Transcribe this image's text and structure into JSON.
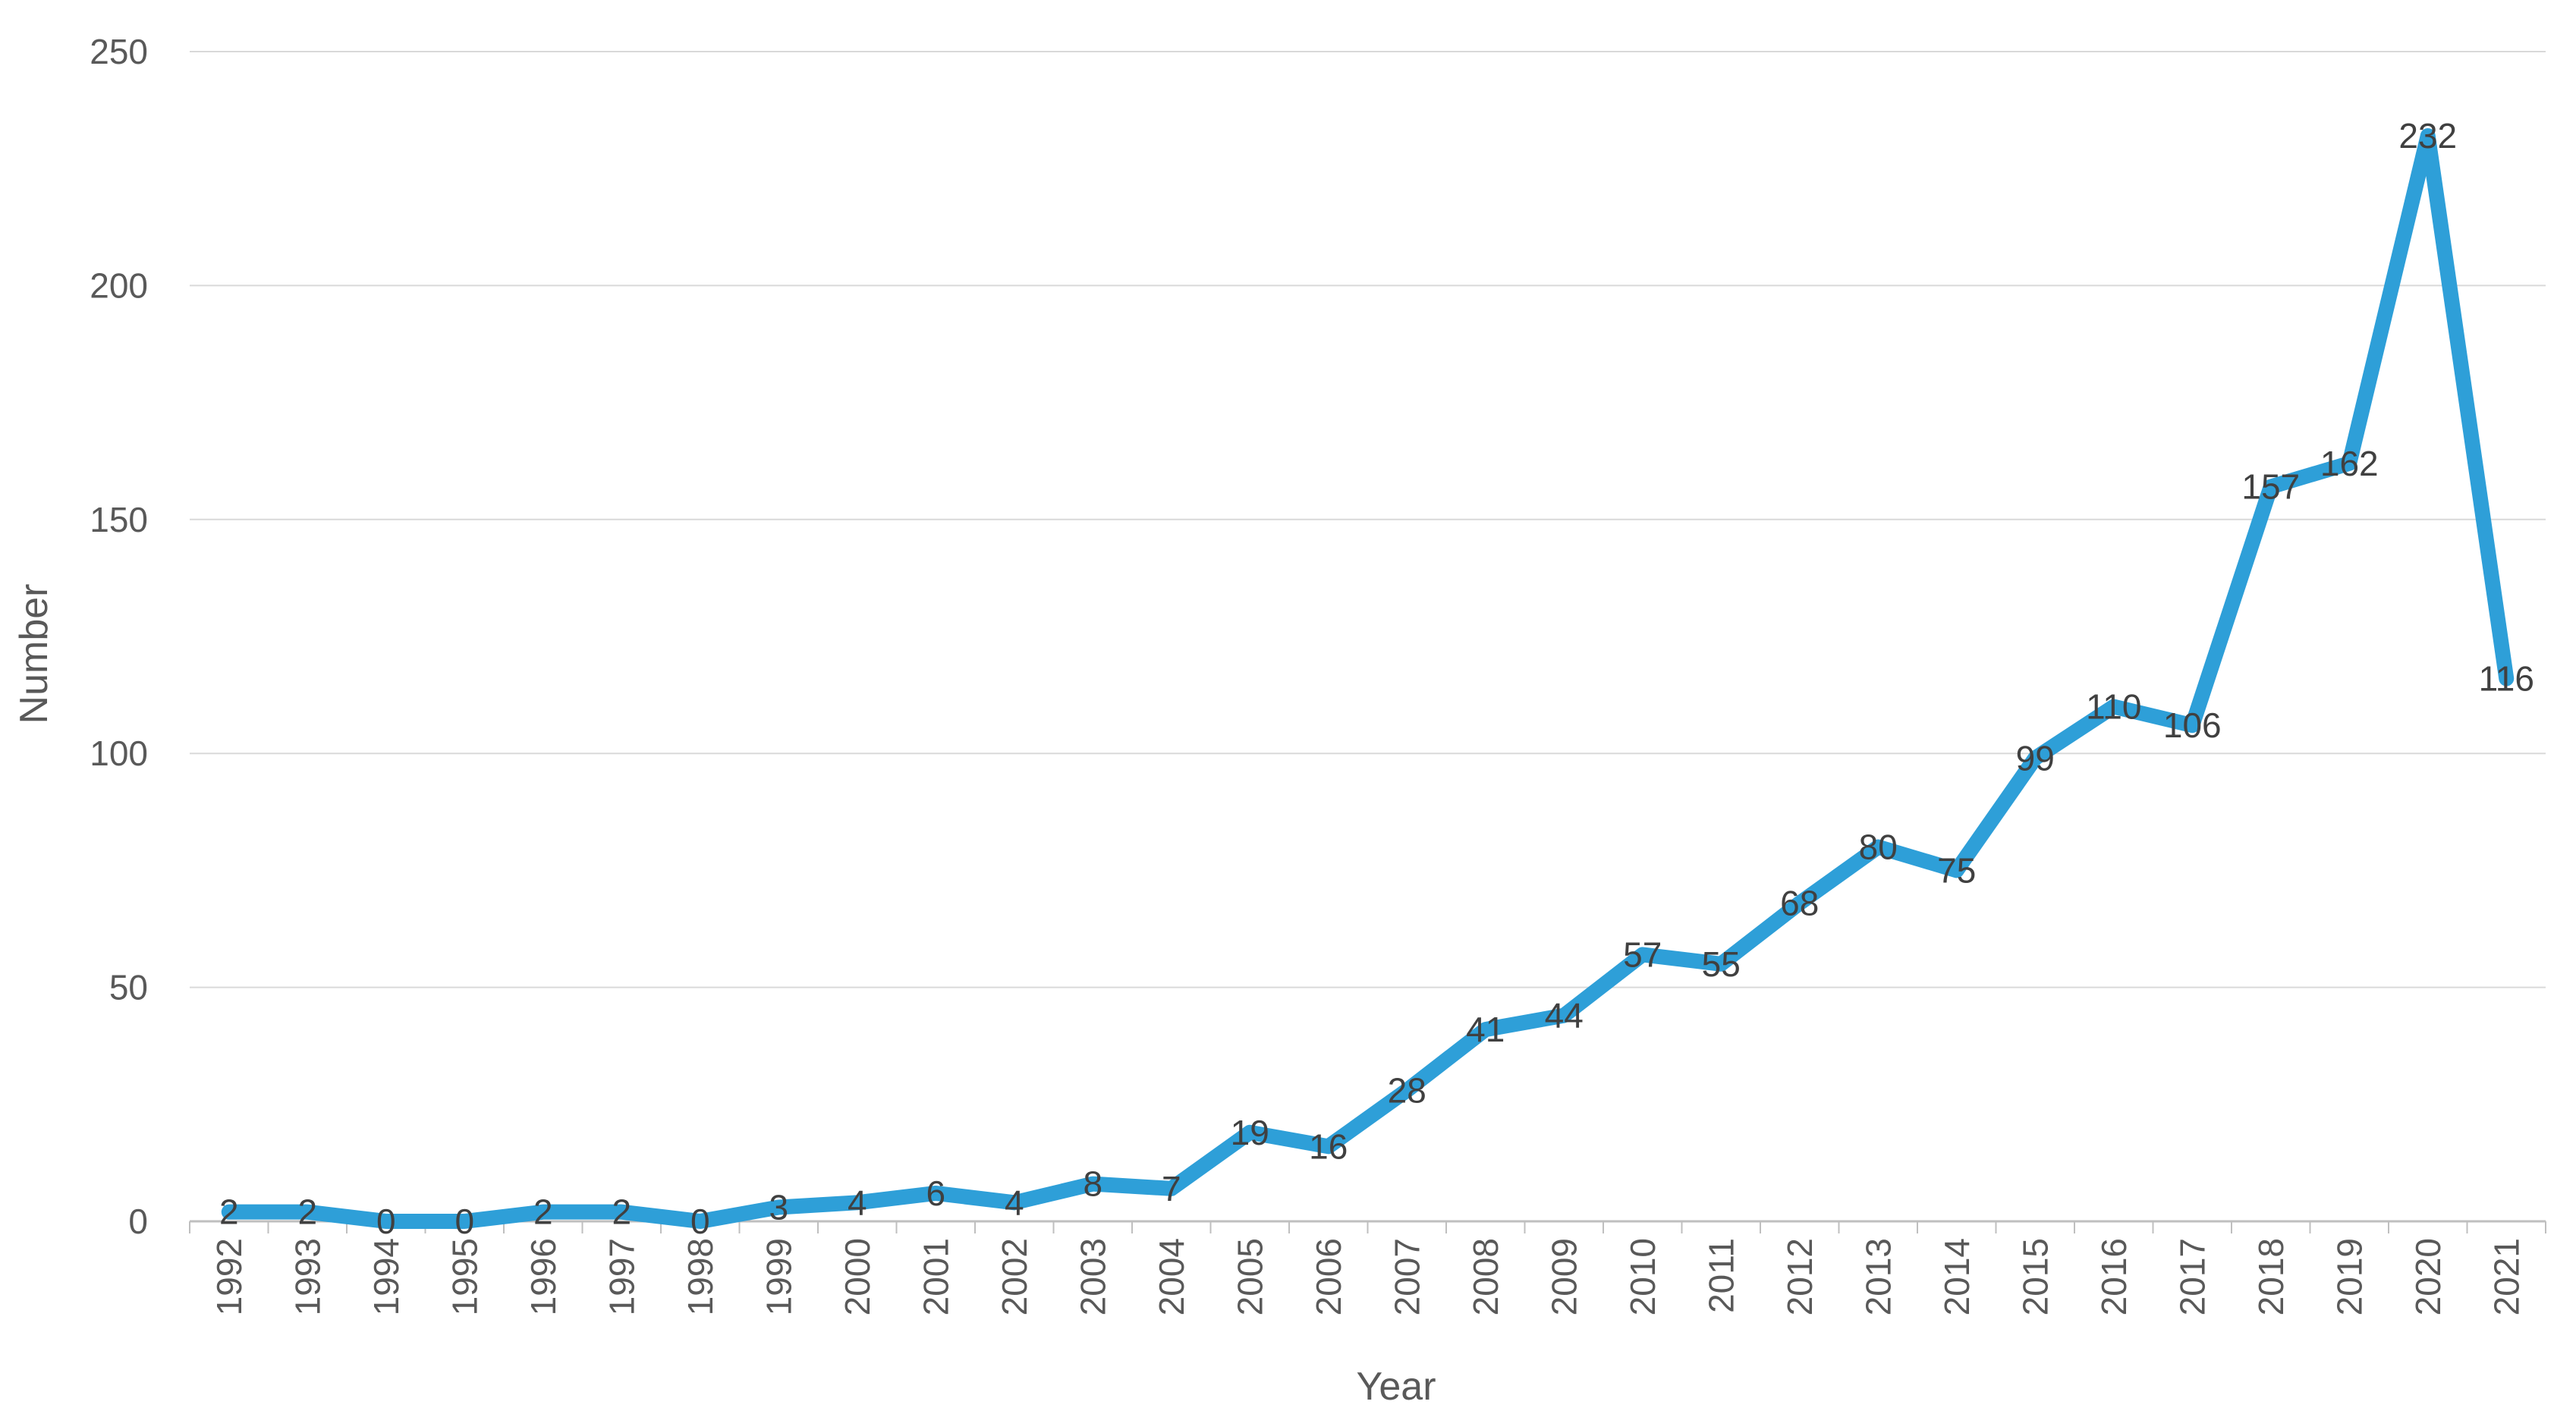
{
  "chart_data": {
    "type": "line",
    "title": "",
    "xlabel": "Year",
    "ylabel": "Number",
    "ylim": [
      0,
      250
    ],
    "yticks": [
      0,
      50,
      100,
      150,
      200,
      250
    ],
    "grid": "horizontal",
    "legend": "none",
    "line_color": "#2E9FD8",
    "categories": [
      "1992",
      "1993",
      "1994",
      "1995",
      "1996",
      "1997",
      "1998",
      "1999",
      "2000",
      "2001",
      "2002",
      "2003",
      "2004",
      "2005",
      "2006",
      "2007",
      "2008",
      "2009",
      "2010",
      "2011",
      "2012",
      "2013",
      "2014",
      "2015",
      "2016",
      "2017",
      "2018",
      "2019",
      "2020",
      "2021"
    ],
    "values": [
      2,
      2,
      0,
      0,
      2,
      2,
      0,
      3,
      4,
      6,
      4,
      8,
      7,
      19,
      16,
      28,
      41,
      44,
      57,
      55,
      68,
      80,
      75,
      99,
      110,
      106,
      157,
      162,
      232,
      116
    ],
    "data_labels": true
  }
}
